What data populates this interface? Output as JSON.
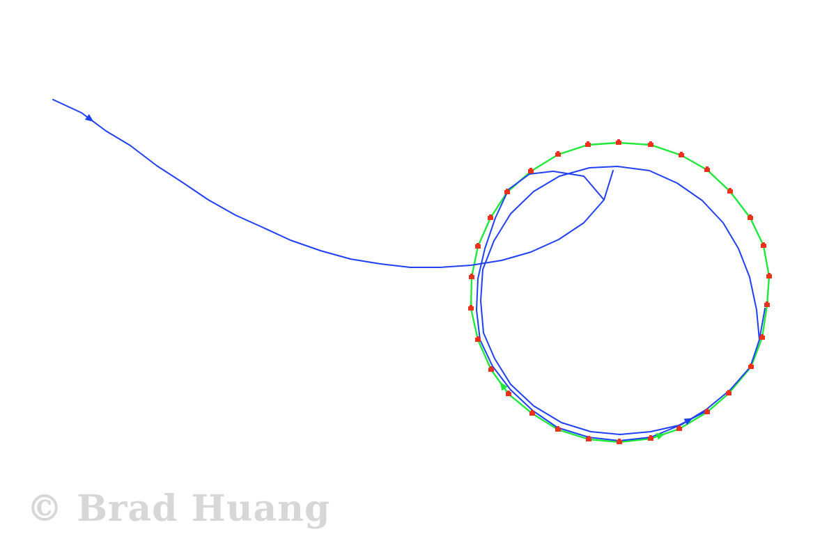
{
  "watermark": {
    "text": "© Brad Huang"
  },
  "colors": {
    "background": "#ffffff",
    "reference_path": "#1ee83a",
    "measured_path": "#1f3ff5",
    "markers": "#e8321e",
    "watermark": "#d7d7d7"
  },
  "chart_data": {
    "type": "line",
    "series": [
      {
        "color": "#1ee83a",
        "closed": true,
        "points": [
          [
            888,
            205
          ],
          [
            934,
            208
          ],
          [
            978,
            223
          ],
          [
            1015,
            244
          ],
          [
            1048,
            275
          ],
          [
            1077,
            313
          ],
          [
            1096,
            353
          ],
          [
            1104,
            397
          ],
          [
            1101,
            438
          ],
          [
            1094,
            485
          ],
          [
            1078,
            527
          ],
          [
            1046,
            565
          ],
          [
            1015,
            592
          ],
          [
            975,
            616
          ],
          [
            934,
            630
          ],
          [
            889,
            635
          ],
          [
            845,
            631
          ],
          [
            801,
            617
          ],
          [
            764,
            594
          ],
          [
            730,
            566
          ],
          [
            705,
            531
          ],
          [
            686,
            488
          ],
          [
            676,
            443
          ],
          [
            677,
            398
          ],
          [
            686,
            354
          ],
          [
            704,
            313
          ],
          [
            728,
            276
          ],
          [
            762,
            246
          ],
          [
            801,
            222
          ],
          [
            844,
            208
          ]
        ]
      },
      {
        "color": "#1f3ff5",
        "closed": false,
        "points": [
          [
            76,
            143
          ],
          [
            117,
            162
          ],
          [
            152,
            188
          ],
          [
            187,
            209
          ],
          [
            225,
            238
          ],
          [
            262,
            262
          ],
          [
            299,
            287
          ],
          [
            338,
            309
          ],
          [
            378,
            327
          ],
          [
            417,
            345
          ],
          [
            460,
            360
          ],
          [
            503,
            372
          ],
          [
            546,
            379
          ],
          [
            589,
            384
          ],
          [
            632,
            384
          ],
          [
            676,
            381
          ],
          [
            720,
            374
          ],
          [
            762,
            362
          ],
          [
            802,
            344
          ],
          [
            838,
            320
          ],
          [
            867,
            287
          ],
          [
            880,
            245
          ]
        ]
      },
      {
        "color": "#1f3ff5",
        "closed": false,
        "points": [
          [
            867,
            287
          ],
          [
            838,
            253
          ],
          [
            794,
            246
          ],
          [
            760,
            250
          ],
          [
            730,
            272
          ],
          [
            711,
            313
          ],
          [
            696,
            357
          ],
          [
            686,
            400
          ],
          [
            684,
            445
          ],
          [
            689,
            488
          ],
          [
            707,
            526
          ],
          [
            733,
            560
          ],
          [
            765,
            590
          ],
          [
            800,
            614
          ],
          [
            845,
            628
          ],
          [
            889,
            633
          ],
          [
            934,
            628
          ],
          [
            978,
            610
          ],
          [
            1014,
            588
          ],
          [
            1048,
            560
          ],
          [
            1077,
            527
          ],
          [
            1090,
            488
          ],
          [
            1098,
            443
          ]
        ]
      },
      {
        "color": "#1f3ff5",
        "closed": false,
        "points": [
          [
            1090,
            488
          ],
          [
            1086,
            445
          ],
          [
            1076,
            398
          ],
          [
            1060,
            357
          ],
          [
            1038,
            320
          ],
          [
            1008,
            288
          ],
          [
            972,
            263
          ],
          [
            932,
            245
          ],
          [
            886,
            239
          ],
          [
            846,
            241
          ],
          [
            803,
            253
          ],
          [
            766,
            275
          ],
          [
            733,
            307
          ],
          [
            709,
            346
          ],
          [
            693,
            387
          ],
          [
            690,
            432
          ],
          [
            694,
            478
          ],
          [
            710,
            515
          ],
          [
            733,
            552
          ],
          [
            766,
            583
          ],
          [
            806,
            607
          ],
          [
            848,
            620
          ],
          [
            890,
            624
          ],
          [
            934,
            620
          ],
          [
            974,
            611
          ],
          [
            1015,
            590
          ]
        ]
      }
    ]
  }
}
